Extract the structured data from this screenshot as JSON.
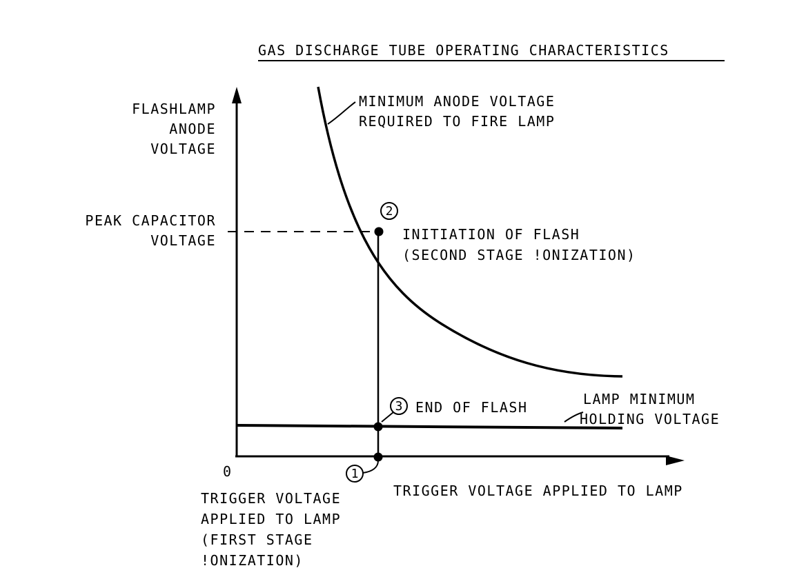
{
  "title": "GAS DISCHARGE TUBE OPERATING CHARACTERISTICS",
  "y_axis_label": [
    "FLASHLAMP",
    "ANODE",
    "VOLTAGE"
  ],
  "x_axis_label": "TRIGGER VOLTAGE APPLIED TO LAMP",
  "origin_label": "0",
  "peak_capacitor_label": [
    "PEAK CAPACITOR",
    "VOLTAGE"
  ],
  "curve_label": [
    "MINIMUM ANODE VOLTAGE",
    "REQUIRED TO FIRE LAMP"
  ],
  "holding_label": [
    "LAMP MINIMUM",
    "HOLDING VOLTAGE"
  ],
  "points": [
    {
      "number": "1",
      "label": [
        "TRIGGER VOLTAGE",
        "APPLIED TO LAMP",
        "(FIRST STAGE",
        "!ONIZATION)"
      ]
    },
    {
      "number": "2",
      "label": [
        "INITIATION OF FLASH",
        "(SECOND STAGE !ONIZATION)"
      ]
    },
    {
      "number": "3",
      "label": [
        "END OF FLASH"
      ]
    }
  ],
  "colors": {
    "ink": "#000000",
    "paper": "#ffffff"
  }
}
